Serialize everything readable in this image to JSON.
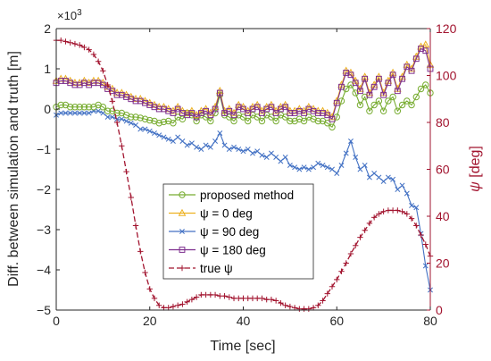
{
  "chart_data": {
    "type": "line",
    "xlabel": "Time [sec]",
    "ylabel_left": "Diff. between simulation and truth [m]",
    "ylabel_right_symbol": "ψ",
    "ylabel_right_unit": "[deg]",
    "left_exponent_base": "×10",
    "left_exponent_power": "3",
    "xlim": [
      0,
      80
    ],
    "ylim_left": [
      -5,
      2
    ],
    "ylim_right": [
      0,
      120
    ],
    "x_ticks": [
      "0",
      "20",
      "40",
      "60",
      "80"
    ],
    "y_ticks_left": [
      "2",
      "1",
      "0",
      "−1",
      "−2",
      "−3",
      "−4",
      "−5"
    ],
    "y_ticks_right": [
      "120",
      "100",
      "80",
      "60",
      "40",
      "20",
      "0"
    ],
    "grid": false,
    "legend_position": "bottom-center",
    "colors": {
      "proposed": "#77ac30",
      "psi0": "#edb120",
      "psi90": "#4472c4",
      "psi180": "#7e2f8e",
      "true_psi": "#a2142f",
      "axis_right": "#a2142f"
    },
    "legend": [
      {
        "key": "proposed",
        "text": "proposed method",
        "marker": "circle"
      },
      {
        "key": "psi0",
        "text": "ψ = 0 deg",
        "marker": "triangle"
      },
      {
        "key": "psi90",
        "text": "ψ = 90 deg",
        "marker": "x"
      },
      {
        "key": "psi180",
        "text": "ψ = 180 deg",
        "marker": "square"
      },
      {
        "key": "true_psi",
        "text": "true ψ",
        "marker": "plus"
      }
    ],
    "series": [
      {
        "key": "proposed",
        "axis": "left",
        "marker": "circle",
        "x": [
          0,
          1,
          2,
          3,
          4,
          5,
          6,
          7,
          8,
          9,
          10,
          11,
          12,
          13,
          14,
          15,
          16,
          17,
          18,
          19,
          20,
          21,
          22,
          23,
          24,
          25,
          26,
          27,
          28,
          29,
          30,
          31,
          32,
          33,
          34,
          35,
          36,
          37,
          38,
          39,
          40,
          41,
          42,
          43,
          44,
          45,
          46,
          47,
          48,
          49,
          50,
          51,
          52,
          53,
          54,
          55,
          56,
          57,
          58,
          59,
          60,
          61,
          62,
          63,
          64,
          65,
          66,
          67,
          68,
          69,
          70,
          71,
          72,
          73,
          74,
          75,
          76,
          77,
          78,
          79,
          80
        ],
        "y": [
          0.05,
          0.1,
          0.1,
          0.05,
          0.05,
          0.05,
          0.05,
          0.05,
          0.05,
          0.1,
          0.05,
          -0.05,
          -0.05,
          -0.1,
          -0.1,
          -0.15,
          -0.2,
          -0.2,
          -0.22,
          -0.25,
          -0.28,
          -0.3,
          -0.35,
          -0.32,
          -0.3,
          -0.35,
          -0.2,
          -0.25,
          -0.1,
          -0.15,
          -0.3,
          -0.15,
          -0.2,
          -0.3,
          -0.1,
          0.35,
          -0.15,
          -0.2,
          -0.3,
          -0.15,
          -0.2,
          -0.3,
          -0.15,
          -0.2,
          -0.3,
          -0.15,
          -0.2,
          -0.3,
          -0.15,
          -0.2,
          -0.3,
          -0.3,
          -0.25,
          -0.3,
          -0.2,
          -0.25,
          -0.3,
          -0.3,
          -0.35,
          -0.45,
          -0.2,
          0.2,
          0.5,
          0.6,
          0.4,
          0.1,
          0.3,
          -0.05,
          0.1,
          0.2,
          -0.05,
          0.2,
          0.3,
          -0.05,
          0.1,
          0.2,
          0.1,
          0.3,
          0.5,
          0.6,
          0.4
        ]
      },
      {
        "key": "psi0",
        "axis": "left",
        "marker": "triangle",
        "x": [
          0,
          1,
          2,
          3,
          4,
          5,
          6,
          7,
          8,
          9,
          10,
          11,
          12,
          13,
          14,
          15,
          16,
          17,
          18,
          19,
          20,
          21,
          22,
          23,
          24,
          25,
          26,
          27,
          28,
          29,
          30,
          31,
          32,
          33,
          34,
          35,
          36,
          37,
          38,
          39,
          40,
          41,
          42,
          43,
          44,
          45,
          46,
          47,
          48,
          49,
          50,
          51,
          52,
          53,
          54,
          55,
          56,
          57,
          58,
          59,
          60,
          61,
          62,
          63,
          64,
          65,
          66,
          67,
          68,
          69,
          70,
          71,
          72,
          73,
          74,
          75,
          76,
          77,
          78,
          79,
          80
        ],
        "y": [
          0.7,
          0.75,
          0.75,
          0.7,
          0.65,
          0.65,
          0.7,
          0.65,
          0.7,
          0.7,
          0.65,
          0.55,
          0.5,
          0.4,
          0.4,
          0.35,
          0.3,
          0.25,
          0.25,
          0.2,
          0.15,
          0.1,
          0.05,
          0.05,
          0.0,
          -0.05,
          0.05,
          -0.05,
          -0.1,
          -0.05,
          -0.15,
          -0.05,
          0.0,
          -0.1,
          0.05,
          0.45,
          -0.05,
          0.0,
          -0.1,
          0.1,
          0.05,
          -0.05,
          0.05,
          0.1,
          -0.05,
          0.05,
          0.1,
          -0.05,
          0.05,
          0.1,
          -0.05,
          -0.05,
          0.0,
          -0.05,
          0.05,
          0.0,
          -0.05,
          -0.05,
          -0.1,
          -0.2,
          0.2,
          0.6,
          0.95,
          0.9,
          0.7,
          0.5,
          0.8,
          0.4,
          0.6,
          0.8,
          0.4,
          0.7,
          0.9,
          0.5,
          0.8,
          1.1,
          1.0,
          1.3,
          1.55,
          1.6,
          1.1
        ]
      },
      {
        "key": "psi90",
        "axis": "left",
        "marker": "x",
        "x": [
          0,
          1,
          2,
          3,
          4,
          5,
          6,
          7,
          8,
          9,
          10,
          11,
          12,
          13,
          14,
          15,
          16,
          17,
          18,
          19,
          20,
          21,
          22,
          23,
          24,
          25,
          26,
          27,
          28,
          29,
          30,
          31,
          32,
          33,
          34,
          35,
          36,
          37,
          38,
          39,
          40,
          41,
          42,
          43,
          44,
          45,
          46,
          47,
          48,
          49,
          50,
          51,
          52,
          53,
          54,
          55,
          56,
          57,
          58,
          59,
          60,
          61,
          62,
          63,
          64,
          65,
          66,
          67,
          68,
          69,
          70,
          71,
          72,
          73,
          74,
          75,
          76,
          77,
          78,
          79,
          80
        ],
        "y": [
          -0.15,
          -0.1,
          -0.1,
          -0.1,
          -0.1,
          -0.1,
          -0.1,
          -0.1,
          -0.05,
          -0.05,
          -0.1,
          -0.2,
          -0.2,
          -0.25,
          -0.25,
          -0.3,
          -0.35,
          -0.4,
          -0.5,
          -0.5,
          -0.55,
          -0.6,
          -0.65,
          -0.7,
          -0.75,
          -0.8,
          -0.7,
          -0.8,
          -0.9,
          -0.85,
          -0.95,
          -1.0,
          -0.9,
          -0.95,
          -0.8,
          -0.6,
          -0.9,
          -1.0,
          -0.95,
          -1.0,
          -1.05,
          -1.0,
          -1.1,
          -1.05,
          -1.15,
          -1.2,
          -1.1,
          -1.2,
          -1.3,
          -1.2,
          -1.4,
          -1.45,
          -1.5,
          -1.45,
          -1.5,
          -1.45,
          -1.35,
          -1.4,
          -1.45,
          -1.5,
          -1.6,
          -1.4,
          -1.1,
          -0.8,
          -1.2,
          -1.5,
          -1.4,
          -1.7,
          -1.6,
          -1.7,
          -1.8,
          -1.7,
          -1.75,
          -2.0,
          -1.9,
          -2.1,
          -2.4,
          -2.45,
          -3.1,
          -3.9,
          -4.5
        ]
      },
      {
        "key": "psi180",
        "axis": "left",
        "marker": "square",
        "x": [
          0,
          1,
          2,
          3,
          4,
          5,
          6,
          7,
          8,
          9,
          10,
          11,
          12,
          13,
          14,
          15,
          16,
          17,
          18,
          19,
          20,
          21,
          22,
          23,
          24,
          25,
          26,
          27,
          28,
          29,
          30,
          31,
          32,
          33,
          34,
          35,
          36,
          37,
          38,
          39,
          40,
          41,
          42,
          43,
          44,
          45,
          46,
          47,
          48,
          49,
          50,
          51,
          52,
          53,
          54,
          55,
          56,
          57,
          58,
          59,
          60,
          61,
          62,
          63,
          64,
          65,
          66,
          67,
          68,
          69,
          70,
          71,
          72,
          73,
          74,
          75,
          76,
          77,
          78,
          79,
          80
        ],
        "y": [
          0.65,
          0.7,
          0.7,
          0.65,
          0.6,
          0.6,
          0.65,
          0.6,
          0.65,
          0.65,
          0.6,
          0.5,
          0.45,
          0.35,
          0.35,
          0.3,
          0.25,
          0.2,
          0.2,
          0.15,
          0.1,
          0.05,
          0.0,
          0.0,
          -0.05,
          -0.1,
          0.0,
          -0.1,
          -0.15,
          -0.1,
          -0.2,
          -0.1,
          -0.05,
          -0.15,
          0.0,
          0.4,
          -0.1,
          -0.05,
          -0.15,
          0.05,
          0.0,
          -0.1,
          0.0,
          0.05,
          -0.1,
          0.0,
          0.05,
          -0.1,
          0.0,
          0.05,
          -0.1,
          -0.1,
          -0.05,
          -0.1,
          0.0,
          -0.05,
          -0.1,
          -0.1,
          -0.15,
          -0.25,
          0.15,
          0.55,
          0.9,
          0.85,
          0.65,
          0.45,
          0.75,
          0.35,
          0.55,
          0.75,
          0.35,
          0.65,
          0.85,
          0.45,
          0.75,
          1.05,
          0.95,
          1.25,
          1.5,
          1.45,
          1.0
        ]
      },
      {
        "key": "true_psi",
        "axis": "right",
        "marker": "plus",
        "dashed": true,
        "x": [
          0,
          1,
          2,
          3,
          4,
          5,
          6,
          7,
          8,
          9,
          10,
          11,
          12,
          13,
          14,
          15,
          16,
          17,
          18,
          19,
          20,
          21,
          22,
          23,
          24,
          25,
          26,
          27,
          28,
          29,
          30,
          31,
          32,
          33,
          34,
          35,
          36,
          37,
          38,
          39,
          40,
          41,
          42,
          43,
          44,
          45,
          46,
          47,
          48,
          49,
          50,
          51,
          52,
          53,
          54,
          55,
          56,
          57,
          58,
          59,
          60,
          61,
          62,
          63,
          64,
          65,
          66,
          67,
          68,
          69,
          70,
          71,
          72,
          73,
          74,
          75,
          76,
          77,
          78,
          79,
          80
        ],
        "y": [
          115,
          115,
          114.5,
          114,
          113.5,
          113,
          112,
          111,
          109,
          106,
          102,
          96,
          89,
          80,
          70,
          59,
          48,
          36,
          25,
          16,
          9,
          5,
          2,
          1,
          1,
          1.5,
          2,
          2.5,
          3.5,
          4.5,
          5.5,
          6.5,
          6.5,
          6.5,
          6.5,
          6,
          6,
          5.5,
          5,
          5,
          5,
          5,
          5,
          5,
          5,
          4.5,
          4.5,
          4,
          3,
          2,
          1.5,
          1,
          0.5,
          0.5,
          0.5,
          1,
          2,
          4,
          7,
          10,
          13,
          16.5,
          20,
          24,
          27.5,
          31,
          34,
          37,
          39.5,
          41,
          42,
          42.5,
          42.5,
          42.5,
          42,
          41,
          39,
          36,
          32,
          28,
          23
        ]
      }
    ]
  }
}
